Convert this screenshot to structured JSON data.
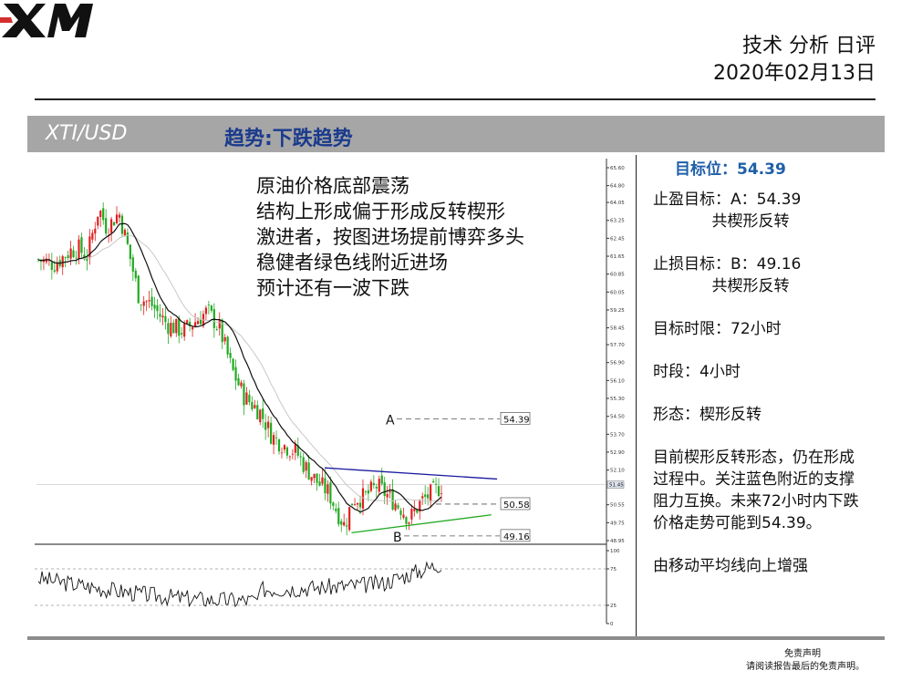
{
  "brand": {
    "logo_text": "XM"
  },
  "header": {
    "report_title": "技术 分析 日评",
    "date": "2020年02月13日"
  },
  "banner": {
    "symbol": "XTI/USD",
    "trend": "趋势:下跌趋势"
  },
  "notes": [
    "原油价格底部震荡",
    "结构上形成偏于形成反转楔形",
    "激进者，按图进场提前博弈多头",
    "稳健者绿色线附近进场",
    "预计还有一波下跌"
  ],
  "panel": {
    "target_level": "目标位：54.39",
    "take_profit": "止盈目标：A：54.39",
    "take_profit_note": "共楔形反转",
    "stop_loss": "止损目标：B：49.16",
    "stop_loss_note": "共楔形反转",
    "time_limit": "目标时限：72小时",
    "timeframe": "时段：4小时",
    "pattern": "形态：楔形反转",
    "analysis": [
      "目前楔形反转形态，仍在形成",
      "过程中。关注蓝色附近的支撑",
      "阻力互换。未来72小时内下跌",
      "价格走势可能到54.39。"
    ],
    "ma_note": "由移动平均线向上增强"
  },
  "footer": {
    "line1": "免责声明",
    "line2": "请阅读报告最后的免责声明。"
  },
  "colors": {
    "up_candle": "#e02020",
    "down_candle": "#22aa22",
    "upper_trendline": "#1a1aa0",
    "lower_trendline": "#22aa22",
    "banner_bg": "#a6a6a6",
    "banner_trend": "#1a3a8c",
    "target_blue": "#1f5fa8"
  },
  "chart_data": {
    "type": "candlestick",
    "price_axis": {
      "ticks": [
        "65.60",
        "64.80",
        "64.05",
        "63.25",
        "62.45",
        "61.65",
        "60.85",
        "60.05",
        "59.25",
        "58.45",
        "57.70",
        "56.90",
        "56.10",
        "55.30",
        "54.50",
        "53.70",
        "52.90",
        "52.10",
        "51.45",
        "50.55",
        "49.75",
        "48.95"
      ],
      "current_price_label": "51.45",
      "ylim": [
        48.95,
        65.6
      ]
    },
    "levels": [
      {
        "label": "A",
        "price": 54.39,
        "price_label": "54.39"
      },
      {
        "label": "",
        "price": 50.58,
        "price_label": "50.58"
      },
      {
        "label": "B",
        "price": 49.16,
        "price_label": "49.16"
      }
    ],
    "trendlines": [
      {
        "name": "upper",
        "color": "blue",
        "from": [
          0.508,
          52.2
        ],
        "to": [
          0.81,
          51.7
        ]
      },
      {
        "name": "lower",
        "color": "green",
        "from": [
          0.555,
          49.3
        ],
        "to": [
          0.8,
          50.1
        ]
      }
    ],
    "oscillator": {
      "ticks": [
        "100",
        "75",
        "25",
        "0"
      ],
      "levels": [
        75,
        25
      ],
      "ylim": [
        0,
        100
      ]
    },
    "moving_averages": [
      "MA (black)",
      "MA (light grey)"
    ]
  }
}
